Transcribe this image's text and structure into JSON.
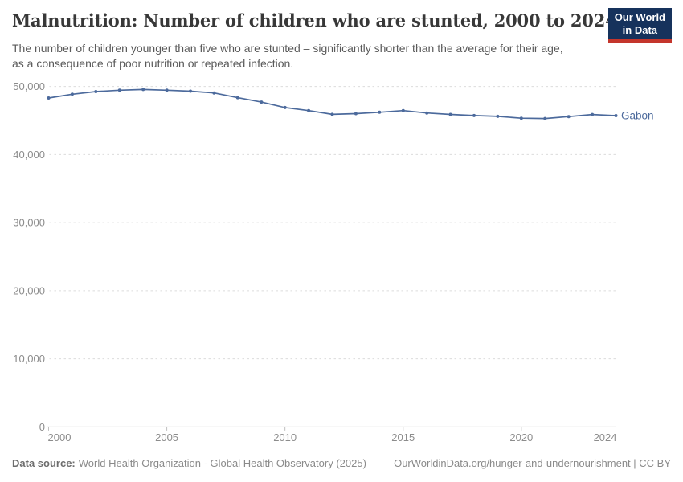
{
  "header": {
    "title": "Malnutrition: Number of children who are stunted, 2000 to 2024",
    "subtitle_lines": [
      "The number of children younger than five who are stunted – significantly shorter than the average for their age,",
      "as a consequence of poor nutrition or repeated infection."
    ],
    "logo": {
      "line1": "Our World",
      "line2": "in Data",
      "bg_color": "#16325c",
      "stripe_color": "#c4352c"
    }
  },
  "chart_data": {
    "type": "line",
    "title": "Malnutrition: Number of children who are stunted, 2000 to 2024",
    "xlabel": "",
    "ylabel": "",
    "x": [
      2000,
      2001,
      2002,
      2003,
      2004,
      2005,
      2006,
      2007,
      2008,
      2009,
      2010,
      2011,
      2012,
      2013,
      2014,
      2015,
      2016,
      2017,
      2018,
      2019,
      2020,
      2021,
      2022,
      2023,
      2024
    ],
    "series": [
      {
        "name": "Gabon",
        "color": "#4c6a9c",
        "values": [
          48300,
          48850,
          49250,
          49450,
          49550,
          49450,
          49300,
          49050,
          48350,
          47700,
          46900,
          46450,
          45900,
          46000,
          46200,
          46450,
          46100,
          45880,
          45720,
          45600,
          45330,
          45280,
          45560,
          45870,
          45710
        ]
      }
    ],
    "xlim": [
      2000,
      2024
    ],
    "ylim": [
      0,
      50000
    ],
    "xticks": [
      2000,
      2005,
      2010,
      2015,
      2020,
      2024
    ],
    "yticks": [
      0,
      10000,
      20000,
      30000,
      40000,
      50000
    ],
    "grid": "horizontal-dashed",
    "legend_position": "end-of-line-label"
  },
  "footer": {
    "datasource_label": "Data source:",
    "datasource_text": "World Health Organization - Global Health Observatory (2025)",
    "link_text": "OurWorldinData.org/hunger-and-undernourishment | CC BY"
  }
}
